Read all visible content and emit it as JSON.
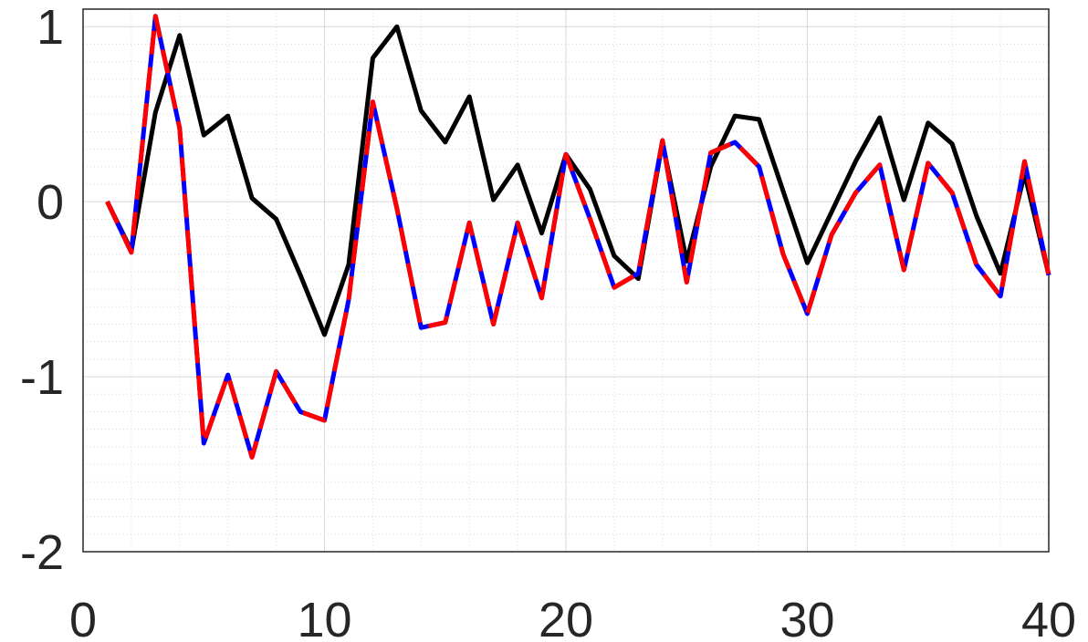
{
  "chart_data": {
    "type": "line",
    "title": "",
    "xlabel": "",
    "ylabel": "",
    "xlim": [
      0,
      40
    ],
    "ylim": [
      -2,
      1.1
    ],
    "xticks": [
      0,
      10,
      20,
      30,
      40
    ],
    "xtick_labels": [
      "0",
      "10",
      "20",
      "30",
      "40"
    ],
    "yticks": [
      -2,
      -1,
      0,
      1
    ],
    "ytick_labels": [
      "-2",
      "-1",
      "0",
      "1"
    ],
    "grid": "major and minor",
    "legend": "none",
    "x": [
      1,
      2,
      3,
      4,
      5,
      6,
      7,
      8,
      9,
      10,
      11,
      12,
      13,
      14,
      15,
      16,
      17,
      18,
      19,
      20,
      21,
      22,
      23,
      24,
      25,
      26,
      27,
      28,
      29,
      30,
      31,
      32,
      33,
      34,
      35,
      36,
      37,
      38,
      39,
      40
    ],
    "series": [
      {
        "color": "#000000",
        "style": "solid",
        "values": [
          0.0,
          -0.28,
          0.51,
          0.95,
          0.38,
          0.49,
          0.02,
          -0.1,
          -0.42,
          -0.76,
          -0.36,
          0.82,
          1.0,
          0.52,
          0.34,
          0.6,
          0.01,
          0.21,
          -0.18,
          0.27,
          0.07,
          -0.31,
          -0.44,
          0.34,
          -0.34,
          0.2,
          0.49,
          0.47,
          0.06,
          -0.35,
          -0.06,
          0.23,
          0.48,
          0.01,
          0.45,
          0.33,
          -0.08,
          -0.41,
          0.16,
          -0.42
        ]
      },
      {
        "color": "#0000ff",
        "style": "solid",
        "values": [
          0.0,
          -0.29,
          1.06,
          0.42,
          -1.38,
          -0.99,
          -1.46,
          -0.97,
          -1.2,
          -1.25,
          -0.56,
          0.57,
          -0.04,
          -0.72,
          -0.69,
          -0.12,
          -0.7,
          -0.12,
          -0.55,
          0.27,
          -0.1,
          -0.49,
          -0.41,
          0.35,
          -0.46,
          0.28,
          0.34,
          0.2,
          -0.3,
          -0.64,
          -0.19,
          0.05,
          0.21,
          -0.39,
          0.22,
          0.05,
          -0.36,
          -0.54,
          0.23,
          -0.42
        ]
      },
      {
        "color": "#ff0000",
        "style": "dashed",
        "values": [
          0.0,
          -0.29,
          1.06,
          0.42,
          -1.38,
          -0.99,
          -1.46,
          -0.97,
          -1.2,
          -1.25,
          -0.56,
          0.57,
          -0.04,
          -0.72,
          -0.69,
          -0.12,
          -0.7,
          -0.12,
          -0.55,
          0.27,
          -0.1,
          -0.49,
          -0.41,
          0.35,
          -0.46,
          0.28,
          0.34,
          0.2,
          -0.3,
          -0.64,
          -0.19,
          0.05,
          0.21,
          -0.39,
          0.22,
          0.05,
          -0.36,
          -0.54,
          0.23,
          -0.42
        ]
      }
    ]
  }
}
